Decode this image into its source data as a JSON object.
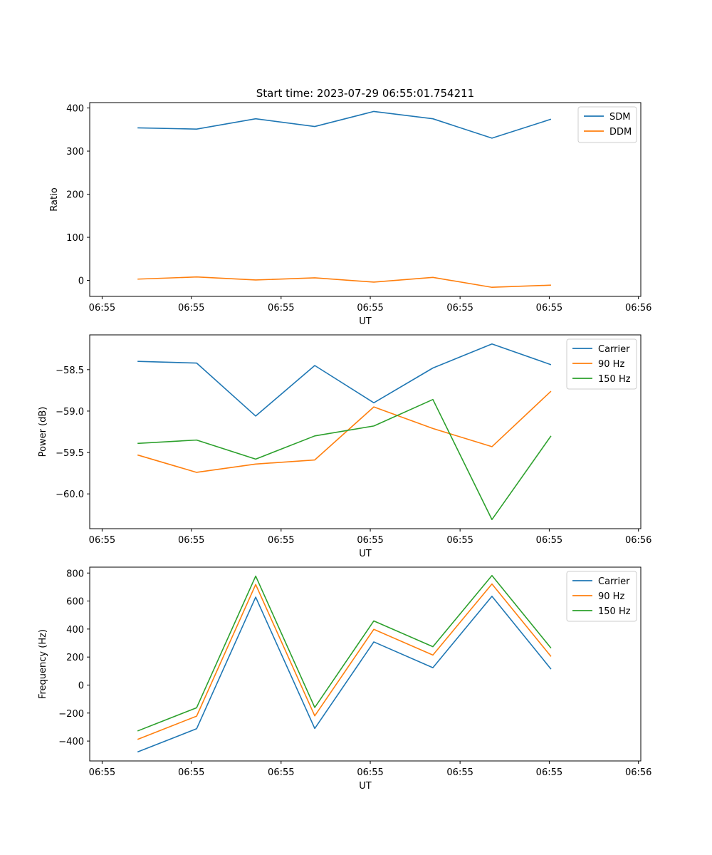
{
  "figure": {
    "title": "Start time: 2023-07-29 06:55:01.754211"
  },
  "colors": {
    "blue": "#1f77b4",
    "orange": "#ff7f0e",
    "green": "#2ca02c"
  },
  "chart_data": [
    {
      "type": "line",
      "title": "Start time: 2023-07-29 06:55:01.754211",
      "xlabel": "UT",
      "ylabel": "Ratio",
      "x": [
        1,
        2,
        3,
        4,
        5,
        6,
        7,
        8
      ],
      "xlim": [
        0.19,
        9.52
      ],
      "x_ticks": [
        0.4,
        1.91,
        3.43,
        4.94,
        6.46,
        7.97,
        9.48
      ],
      "x_tick_labels": [
        "06:55",
        "06:55",
        "06:55",
        "06:55",
        "06:55",
        "06:55",
        "06:56"
      ],
      "ylim": [
        -37.1,
        412.5
      ],
      "y_ticks": [
        0,
        100,
        200,
        300,
        400
      ],
      "y_tick_labels": [
        "0",
        "100",
        "200",
        "300",
        "400"
      ],
      "legend_position": "top-right",
      "series": [
        {
          "name": "SDM",
          "color": "#1f77b4",
          "values": [
            354,
            351,
            375,
            357,
            392,
            375,
            330,
            374
          ]
        },
        {
          "name": "DDM",
          "color": "#ff7f0e",
          "values": [
            3,
            8,
            1,
            6,
            -4,
            7,
            -16,
            -11
          ]
        }
      ]
    },
    {
      "type": "line",
      "title": "",
      "xlabel": "UT",
      "ylabel": "Power (dB)",
      "x": [
        1,
        2,
        3,
        4,
        5,
        6,
        7,
        8
      ],
      "xlim": [
        0.19,
        9.52
      ],
      "x_ticks": [
        0.4,
        1.91,
        3.43,
        4.94,
        6.46,
        7.97,
        9.48
      ],
      "x_tick_labels": [
        "06:55",
        "06:55",
        "06:55",
        "06:55",
        "06:55",
        "06:55",
        "06:56"
      ],
      "ylim": [
        -60.42,
        -58.08
      ],
      "y_ticks": [
        -58.5,
        -59.0,
        -59.5,
        -60.0
      ],
      "y_tick_labels": [
        "−58.5",
        "−59.0",
        "−59.5",
        "−60.0"
      ],
      "legend_position": "top-right",
      "series": [
        {
          "name": "Carrier",
          "color": "#1f77b4",
          "values": [
            -58.4,
            -58.42,
            -59.06,
            -58.45,
            -58.9,
            -58.48,
            -58.19,
            -58.44
          ]
        },
        {
          "name": "90 Hz",
          "color": "#ff7f0e",
          "values": [
            -59.53,
            -59.74,
            -59.64,
            -59.59,
            -58.95,
            -59.21,
            -59.43,
            -58.76
          ]
        },
        {
          "name": "150 Hz",
          "color": "#2ca02c",
          "values": [
            -59.39,
            -59.35,
            -59.58,
            -59.3,
            -59.18,
            -58.86,
            -60.31,
            -59.3
          ]
        }
      ]
    },
    {
      "type": "line",
      "title": "",
      "xlabel": "UT",
      "ylabel": "Frequency (Hz)",
      "x": [
        1,
        2,
        3,
        4,
        5,
        6,
        7,
        8
      ],
      "xlim": [
        0.19,
        9.52
      ],
      "x_ticks": [
        0.4,
        1.91,
        3.43,
        4.94,
        6.46,
        7.97,
        9.48
      ],
      "x_tick_labels": [
        "06:55",
        "06:55",
        "06:55",
        "06:55",
        "06:55",
        "06:55",
        "06:56"
      ],
      "ylim": [
        -542,
        842
      ],
      "y_ticks": [
        800,
        600,
        400,
        200,
        0,
        -200,
        -400
      ],
      "y_tick_labels": [
        "800",
        "600",
        "400",
        "200",
        "0",
        "−200",
        "−400"
      ],
      "legend_position": "top-right",
      "series": [
        {
          "name": "Carrier",
          "color": "#1f77b4",
          "values": [
            -478,
            -312,
            628,
            -310,
            308,
            124,
            634,
            114
          ]
        },
        {
          "name": "90 Hz",
          "color": "#ff7f0e",
          "values": [
            -388,
            -222,
            718,
            -220,
            398,
            214,
            722,
            204
          ]
        },
        {
          "name": "150 Hz",
          "color": "#2ca02c",
          "values": [
            -328,
            -162,
            778,
            -160,
            458,
            274,
            782,
            264
          ]
        }
      ]
    }
  ]
}
